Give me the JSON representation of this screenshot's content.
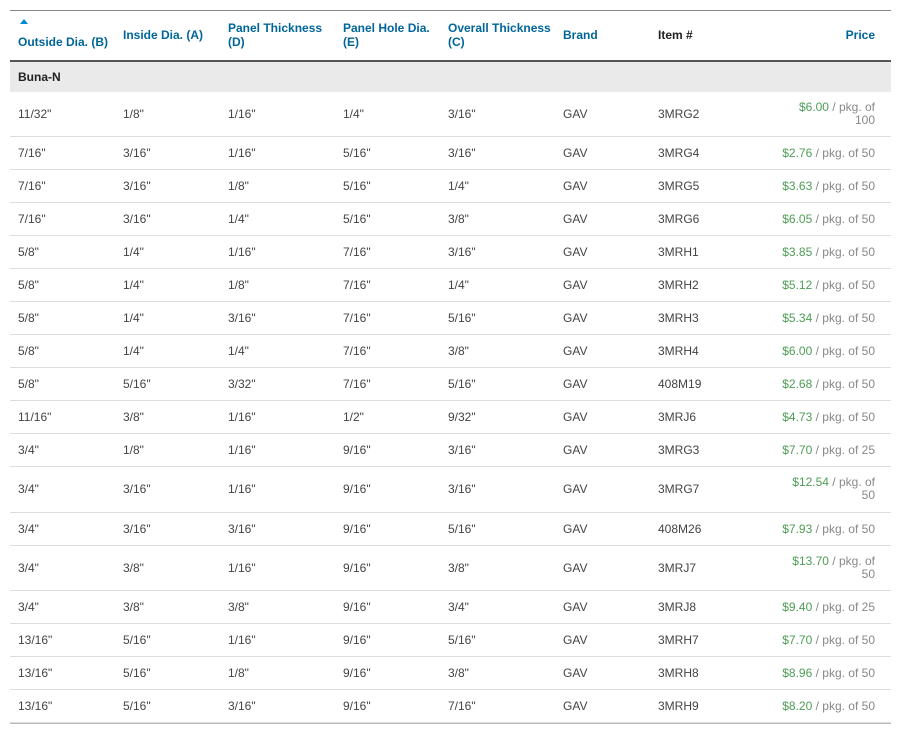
{
  "columns": {
    "od": "Outside Dia. (B)",
    "id": "Inside Dia. (A)",
    "pt": "Panel Thickness (D)",
    "phd": "Panel Hole Dia. (E)",
    "ot": "Overall Thickness (C)",
    "brand": "Brand",
    "item": "Item #",
    "price": "Price"
  },
  "group_label": "Buna-N",
  "rows": [
    {
      "od": "11/32\"",
      "id": "1/8\"",
      "pt": "1/16\"",
      "phd": "1/4\"",
      "ot": "3/16\"",
      "brand": "GAV",
      "item": "3MRG2",
      "price": "$6.00",
      "unit": " / pkg. of 100",
      "wrap": true
    },
    {
      "od": "7/16\"",
      "id": "3/16\"",
      "pt": "1/16\"",
      "phd": "5/16\"",
      "ot": "3/16\"",
      "brand": "GAV",
      "item": "3MRG4",
      "price": "$2.76",
      "unit": " / pkg. of 50",
      "wrap": false
    },
    {
      "od": "7/16\"",
      "id": "3/16\"",
      "pt": "1/8\"",
      "phd": "5/16\"",
      "ot": "1/4\"",
      "brand": "GAV",
      "item": "3MRG5",
      "price": "$3.63",
      "unit": " / pkg. of 50",
      "wrap": false
    },
    {
      "od": "7/16\"",
      "id": "3/16\"",
      "pt": "1/4\"",
      "phd": "5/16\"",
      "ot": "3/8\"",
      "brand": "GAV",
      "item": "3MRG6",
      "price": "$6.05",
      "unit": " / pkg. of 50",
      "wrap": false
    },
    {
      "od": "5/8\"",
      "id": "1/4\"",
      "pt": "1/16\"",
      "phd": "7/16\"",
      "ot": "3/16\"",
      "brand": "GAV",
      "item": "3MRH1",
      "price": "$3.85",
      "unit": " / pkg. of 50",
      "wrap": false
    },
    {
      "od": "5/8\"",
      "id": "1/4\"",
      "pt": "1/8\"",
      "phd": "7/16\"",
      "ot": "1/4\"",
      "brand": "GAV",
      "item": "3MRH2",
      "price": "$5.12",
      "unit": " / pkg. of 50",
      "wrap": false
    },
    {
      "od": "5/8\"",
      "id": "1/4\"",
      "pt": "3/16\"",
      "phd": "7/16\"",
      "ot": "5/16\"",
      "brand": "GAV",
      "item": "3MRH3",
      "price": "$5.34",
      "unit": " / pkg. of 50",
      "wrap": false
    },
    {
      "od": "5/8\"",
      "id": "1/4\"",
      "pt": "1/4\"",
      "phd": "7/16\"",
      "ot": "3/8\"",
      "brand": "GAV",
      "item": "3MRH4",
      "price": "$6.00",
      "unit": " / pkg. of 50",
      "wrap": false
    },
    {
      "od": "5/8\"",
      "id": "5/16\"",
      "pt": "3/32\"",
      "phd": "7/16\"",
      "ot": "5/16\"",
      "brand": "GAV",
      "item": "408M19",
      "price": "$2.68",
      "unit": " / pkg. of 50",
      "wrap": false
    },
    {
      "od": "11/16\"",
      "id": "3/8\"",
      "pt": "1/16\"",
      "phd": "1/2\"",
      "ot": "9/32\"",
      "brand": "GAV",
      "item": "3MRJ6",
      "price": "$4.73",
      "unit": " / pkg. of 50",
      "wrap": false
    },
    {
      "od": "3/4\"",
      "id": "1/8\"",
      "pt": "1/16\"",
      "phd": "9/16\"",
      "ot": "3/16\"",
      "brand": "GAV",
      "item": "3MRG3",
      "price": "$7.70",
      "unit": " / pkg. of 25",
      "wrap": false
    },
    {
      "od": "3/4\"",
      "id": "3/16\"",
      "pt": "1/16\"",
      "phd": "9/16\"",
      "ot": "3/16\"",
      "brand": "GAV",
      "item": "3MRG7",
      "price": "$12.54",
      "unit": " / pkg. of 50",
      "wrap": true
    },
    {
      "od": "3/4\"",
      "id": "3/16\"",
      "pt": "3/16\"",
      "phd": "9/16\"",
      "ot": "5/16\"",
      "brand": "GAV",
      "item": "408M26",
      "price": "$7.93",
      "unit": " / pkg. of 50",
      "wrap": false
    },
    {
      "od": "3/4\"",
      "id": "3/8\"",
      "pt": "1/16\"",
      "phd": "9/16\"",
      "ot": "3/8\"",
      "brand": "GAV",
      "item": "3MRJ7",
      "price": "$13.70",
      "unit": " / pkg. of 50",
      "wrap": true
    },
    {
      "od": "3/4\"",
      "id": "3/8\"",
      "pt": "3/8\"",
      "phd": "9/16\"",
      "ot": "3/4\"",
      "brand": "GAV",
      "item": "3MRJ8",
      "price": "$9.40",
      "unit": " / pkg. of 25",
      "wrap": false
    },
    {
      "od": "13/16\"",
      "id": "5/16\"",
      "pt": "1/16\"",
      "phd": "9/16\"",
      "ot": "5/16\"",
      "brand": "GAV",
      "item": "3MRH7",
      "price": "$7.70",
      "unit": " / pkg. of 50",
      "wrap": false
    },
    {
      "od": "13/16\"",
      "id": "5/16\"",
      "pt": "1/8\"",
      "phd": "9/16\"",
      "ot": "3/8\"",
      "brand": "GAV",
      "item": "3MRH8",
      "price": "$8.96",
      "unit": " / pkg. of 50",
      "wrap": false
    },
    {
      "od": "13/16\"",
      "id": "5/16\"",
      "pt": "3/16\"",
      "phd": "9/16\"",
      "ot": "7/16\"",
      "brand": "GAV",
      "item": "3MRH9",
      "price": "$8.20",
      "unit": " / pkg. of 50",
      "wrap": false
    }
  ]
}
